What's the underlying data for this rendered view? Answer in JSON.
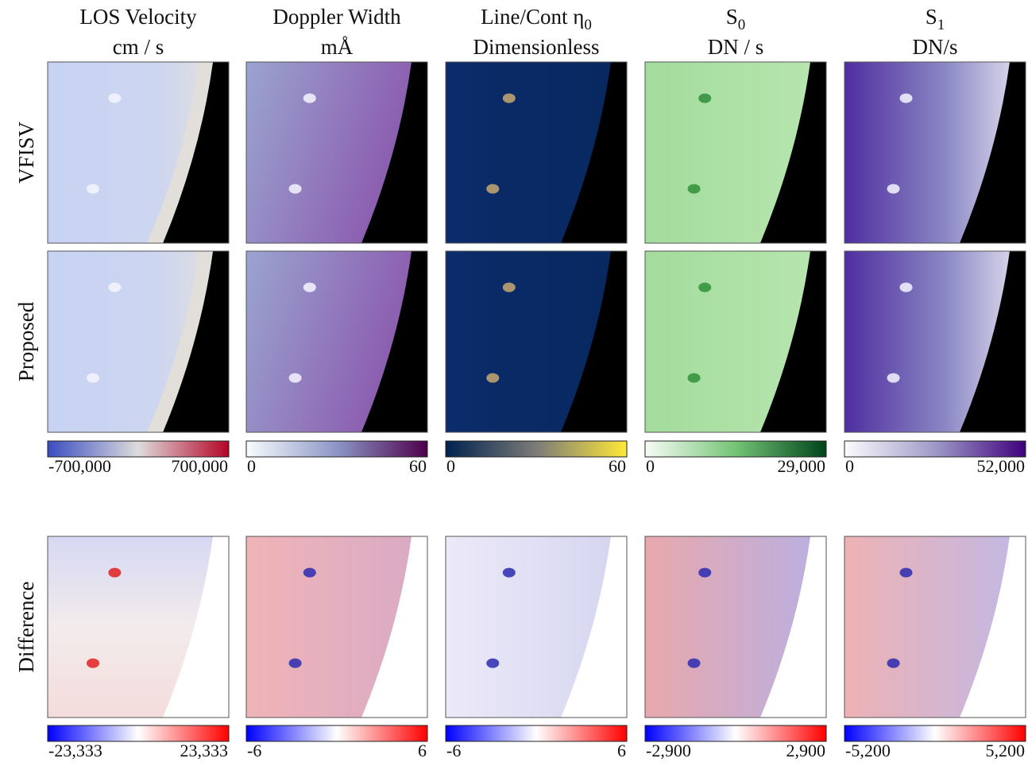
{
  "columns": [
    {
      "title": "LOS Velocity",
      "unit": "cm / s",
      "colorbar_ticks": [
        "-700,000",
        "700,000"
      ],
      "difference_ticks": [
        "-23,333",
        "23,333"
      ]
    },
    {
      "title": "Doppler Width",
      "unit": "mÅ",
      "colorbar_ticks": [
        "0",
        "60"
      ],
      "difference_ticks": [
        "-6",
        "6"
      ]
    },
    {
      "title": "Line/Cont η",
      "title_sub": "0",
      "unit": "Dimensionless",
      "colorbar_ticks": [
        "0",
        "60"
      ],
      "difference_ticks": [
        "-6",
        "6"
      ]
    },
    {
      "title": "S",
      "title_sub": "0",
      "unit": "DN / s",
      "colorbar_ticks": [
        "0",
        "29,000"
      ],
      "difference_ticks": [
        "-2,900",
        "2,900"
      ]
    },
    {
      "title": "S",
      "title_sub": "1",
      "unit": "DN/s",
      "colorbar_ticks": [
        "0",
        "52,000"
      ],
      "difference_ticks": [
        "-5,200",
        "5,200"
      ]
    }
  ],
  "rows": [
    "VFISV",
    "Proposed",
    "Difference"
  ]
}
